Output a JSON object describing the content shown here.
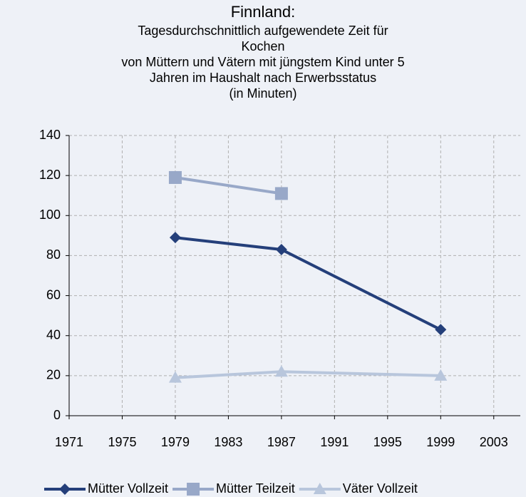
{
  "chart_data": {
    "type": "line",
    "title": "Finnland:",
    "subtitle": [
      "Tagesdurchschnittlich aufgewendete Zeit für",
      "Kochen",
      "von Müttern und Vätern mit jüngstem Kind unter 5",
      "Jahren im Haushalt nach Erwerbsstatus",
      "(in Minuten)"
    ],
    "x": [
      1979,
      1987,
      1999
    ],
    "series": [
      {
        "name": "Mütter Vollzeit",
        "color": "#243f7a",
        "marker": "diamond",
        "values": [
          89,
          83,
          43
        ]
      },
      {
        "name": "Mütter Teilzeit",
        "color": "#98a8c8",
        "marker": "square",
        "values": [
          119,
          111,
          null
        ]
      },
      {
        "name": "Väter Vollzeit",
        "color": "#b8c6dc",
        "marker": "triangle",
        "values": [
          19,
          22,
          20
        ]
      }
    ],
    "xlim": [
      1971,
      2005
    ],
    "xticks": [
      1971,
      1975,
      1979,
      1983,
      1987,
      1991,
      1995,
      1999,
      2003
    ],
    "ylim": [
      0,
      140
    ],
    "yticks": [
      0,
      20,
      40,
      60,
      80,
      100,
      120,
      140
    ],
    "grid": true,
    "legend": "bottom",
    "background": "#eef1f7"
  }
}
